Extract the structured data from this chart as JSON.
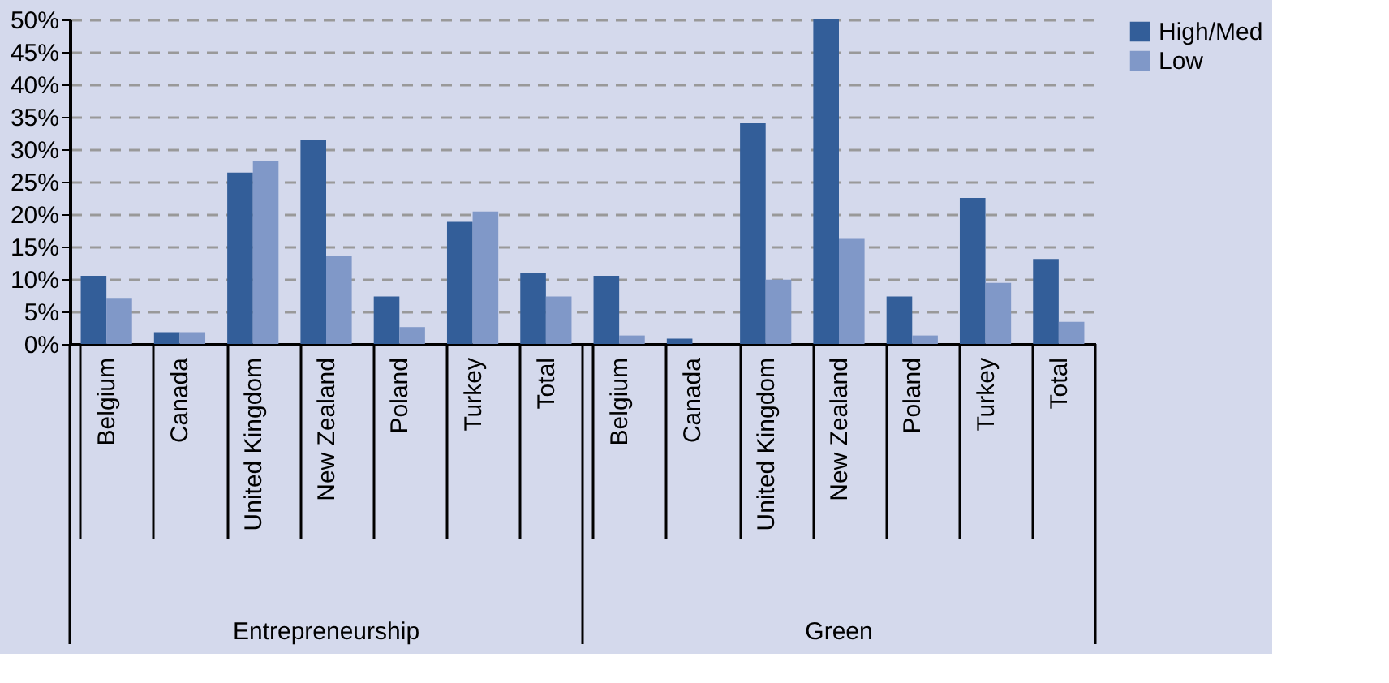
{
  "chart_data": {
    "type": "bar",
    "categories": [
      "Belgium",
      "Canada",
      "United Kingdom",
      "New Zealand",
      "Poland",
      "Turkey",
      "Total",
      "Belgium",
      "Canada",
      "United Kingdom",
      "New Zealand",
      "Poland",
      "Turkey",
      "Total"
    ],
    "series": [
      {
        "name": "High/Med",
        "color": "#335e99",
        "values": [
          10.5,
          1.8,
          26.4,
          31.4,
          7.3,
          18.8,
          11.0,
          10.5,
          0.8,
          34.0,
          50.0,
          7.3,
          22.5,
          13.1
        ]
      },
      {
        "name": "Low",
        "color": "#8098c8",
        "values": [
          7.1,
          1.8,
          28.2,
          13.6,
          2.6,
          20.4,
          7.3,
          1.3,
          0,
          9.9,
          16.2,
          1.3,
          9.4,
          3.4
        ]
      }
    ],
    "ylim": [
      0,
      50
    ],
    "yticks": [
      {
        "value": 0,
        "label": "0%"
      },
      {
        "value": 5,
        "label": "5%"
      },
      {
        "value": 10,
        "label": "10%"
      },
      {
        "value": 15,
        "label": "15%"
      },
      {
        "value": 20,
        "label": "20%"
      },
      {
        "value": 25,
        "label": "25%"
      },
      {
        "value": 30,
        "label": "30%"
      },
      {
        "value": 35,
        "label": "35%"
      },
      {
        "value": 40,
        "label": "40%"
      },
      {
        "value": 45,
        "label": "45%"
      },
      {
        "value": 50,
        "label": "50%"
      }
    ],
    "grid": "y",
    "legend": "right",
    "annotations": [
      "Entrepreneurship",
      "Green"
    ]
  }
}
